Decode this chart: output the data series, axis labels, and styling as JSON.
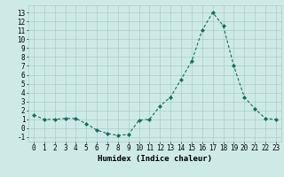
{
  "x": [
    0,
    1,
    2,
    3,
    4,
    5,
    6,
    7,
    8,
    9,
    10,
    11,
    12,
    13,
    14,
    15,
    16,
    17,
    18,
    19,
    20,
    21,
    22,
    23
  ],
  "y": [
    1.5,
    1.0,
    1.0,
    1.1,
    1.1,
    0.5,
    -0.2,
    -0.6,
    -0.8,
    -0.7,
    0.9,
    1.0,
    2.5,
    3.5,
    5.5,
    7.5,
    11.0,
    13.0,
    11.5,
    7.0,
    3.5,
    2.2,
    1.1,
    1.0
  ],
  "line_color": "#1a6b5a",
  "marker": "D",
  "marker_size": 2.0,
  "bg_color": "#ceeae7",
  "grid_color": "#a8ccc9",
  "xlabel": "Humidex (Indice chaleur)",
  "xlabel_fontsize": 6.5,
  "tick_fontsize": 5.5,
  "ylim": [
    -1.5,
    13.8
  ],
  "xlim": [
    -0.5,
    23.5
  ],
  "yticks": [
    -1,
    0,
    1,
    2,
    3,
    4,
    5,
    6,
    7,
    8,
    9,
    10,
    11,
    12,
    13
  ],
  "xticks": [
    0,
    1,
    2,
    3,
    4,
    5,
    6,
    7,
    8,
    9,
    10,
    11,
    12,
    13,
    14,
    15,
    16,
    17,
    18,
    19,
    20,
    21,
    22,
    23
  ]
}
